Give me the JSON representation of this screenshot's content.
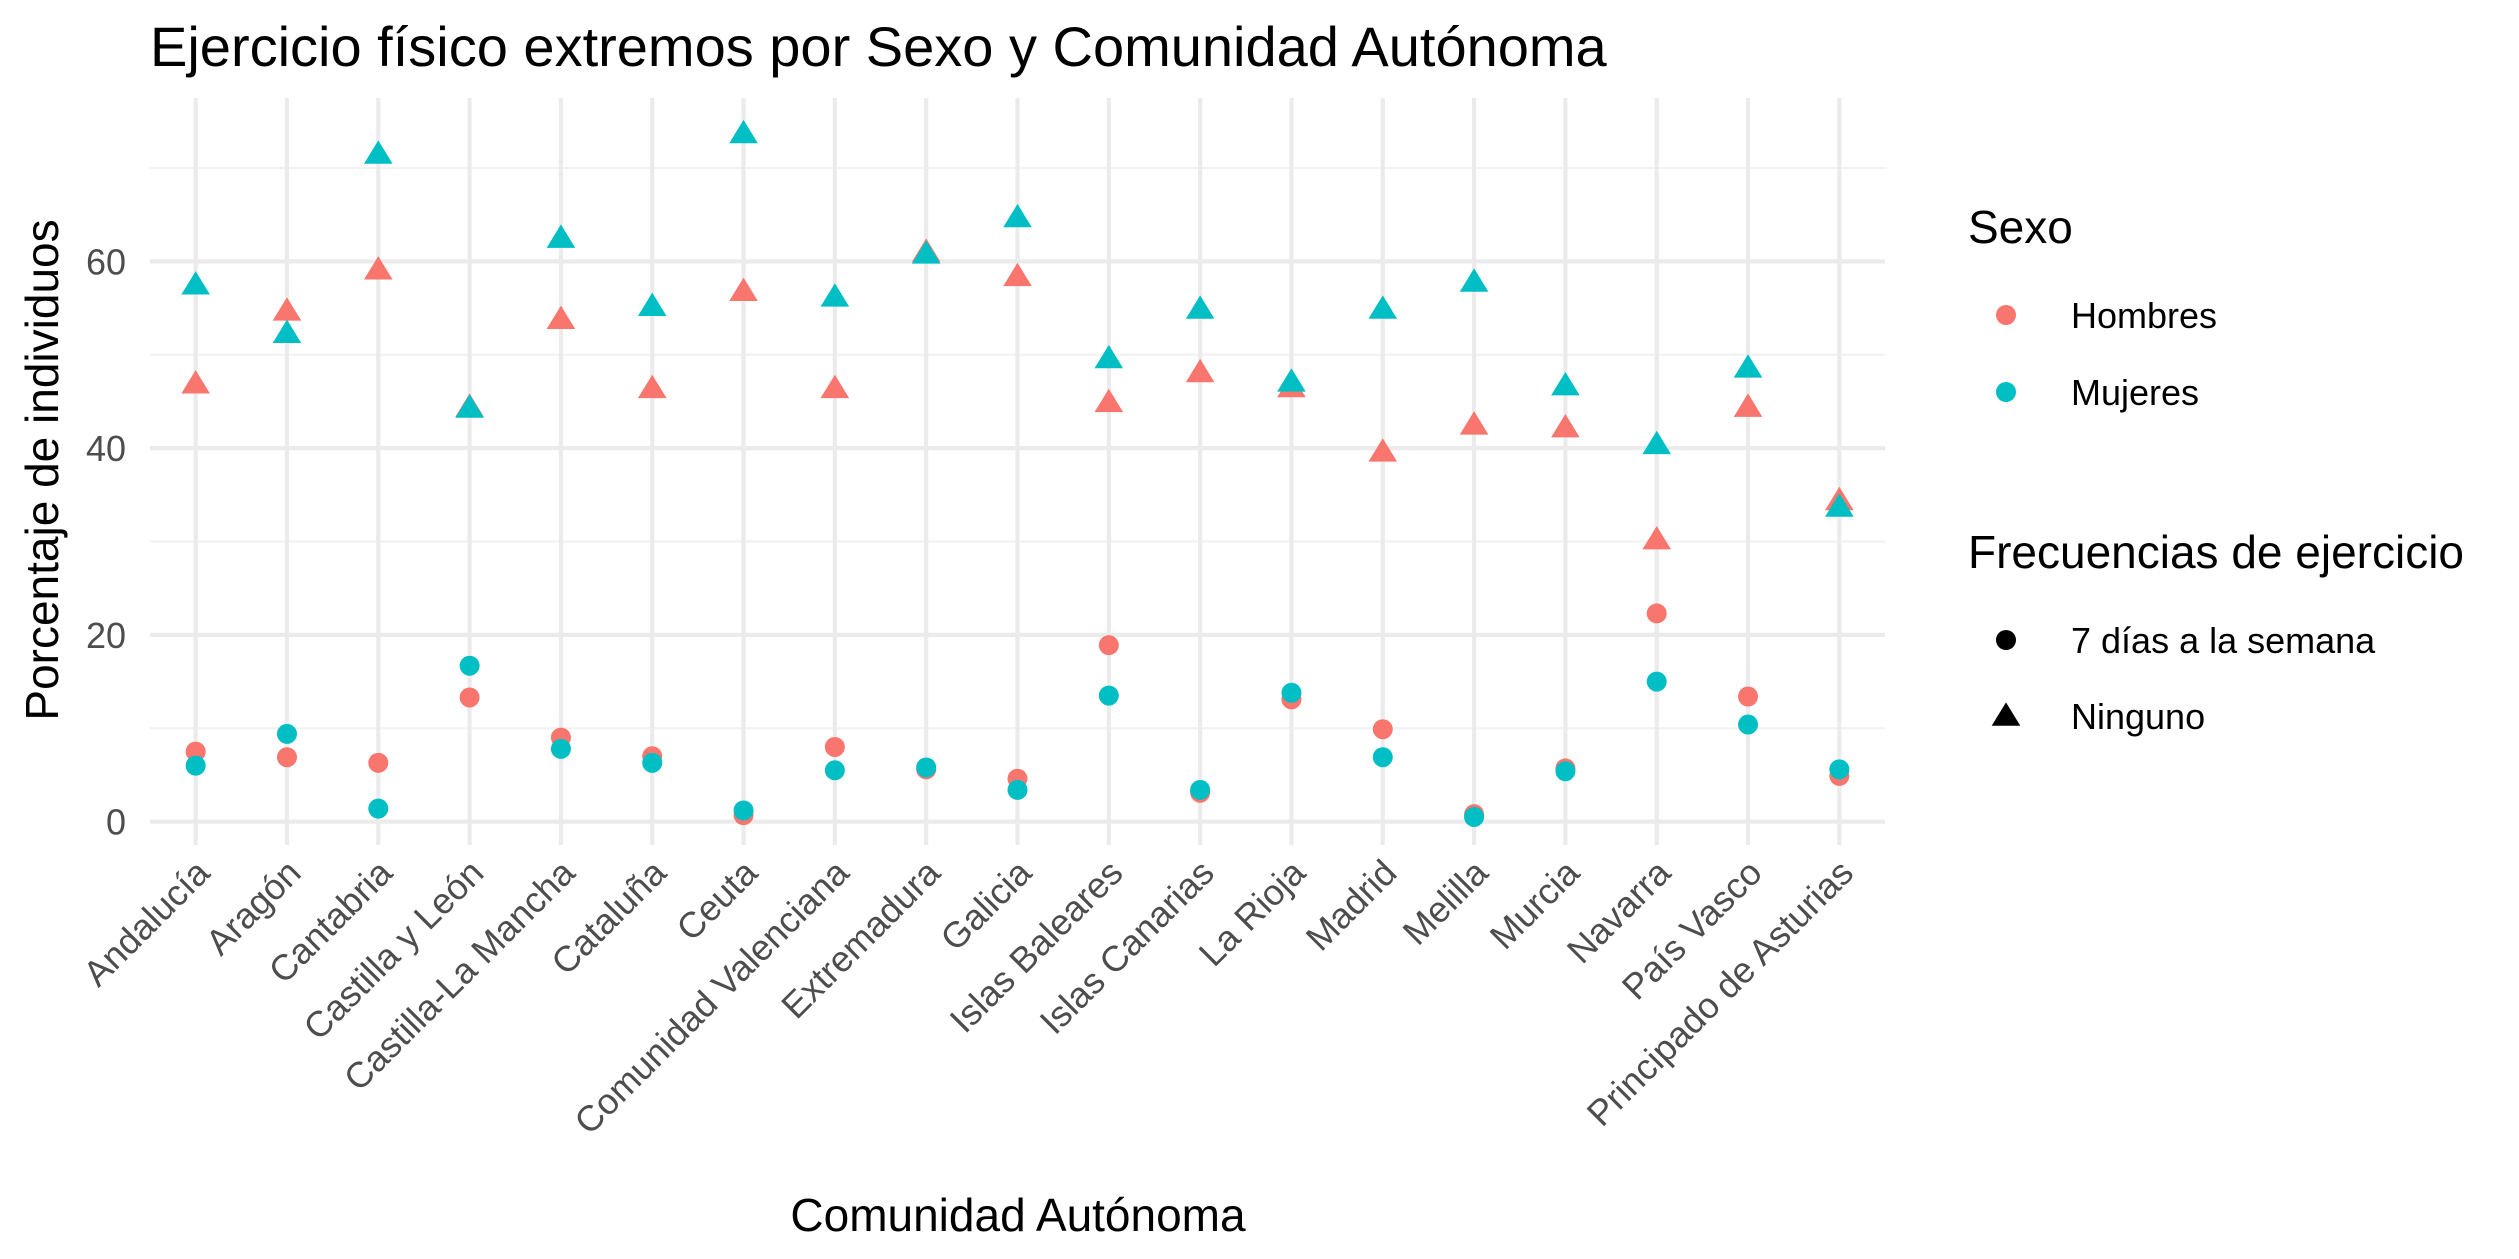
{
  "chart_data": {
    "type": "scatter",
    "title": "Ejercicio físico extremos por Sexo y Comunidad Autónoma",
    "xlabel": "Comunidad Autónoma",
    "ylabel": "Porcentaje de individuos",
    "ylim": [
      -2.5,
      77.5
    ],
    "yticks": [
      0,
      20,
      40,
      60
    ],
    "ytick_labels": [
      "0",
      "20",
      "40",
      "60"
    ],
    "grid": true,
    "legend_position": "right",
    "categories": [
      "Andalucía",
      "Aragón",
      "Cantabria",
      "Castilla y León",
      "Castilla-La Mancha",
      "Cataluña",
      "Ceuta",
      "Comunidad Valenciana",
      "Extremadura",
      "Galicia",
      "Islas Baleares",
      "Islas Canarias",
      "La Rioja",
      "Madrid",
      "Melilla",
      "Murcia",
      "Navarra",
      "País Vasco",
      "Principado de Asturias"
    ],
    "legends": [
      {
        "title": "Sexo",
        "entries": [
          {
            "label": "Hombres",
            "color": "#F8766D",
            "shape": "circle"
          },
          {
            "label": "Mujeres",
            "color": "#00BFC4",
            "shape": "circle"
          }
        ]
      },
      {
        "title": "Frecuencias de ejercicio",
        "entries": [
          {
            "label": "7 días a la semana",
            "color": "#000000",
            "shape": "circle"
          },
          {
            "label": "Ninguno",
            "color": "#000000",
            "shape": "triangle"
          }
        ]
      }
    ],
    "series": [
      {
        "sexo": "Hombres",
        "frecuencia": "Ninguno",
        "color": "#F8766D",
        "shape": "triangle",
        "values": [
          46.9,
          54.7,
          59.1,
          44.4,
          53.8,
          46.4,
          56.8,
          46.4,
          61.0,
          58.4,
          44.9,
          48.1,
          46.5,
          39.6,
          42.5,
          42.2,
          30.2,
          44.4,
          34.4
        ]
      },
      {
        "sexo": "Mujeres",
        "frecuencia": "Ninguno",
        "color": "#00BFC4",
        "shape": "triangle",
        "values": [
          57.5,
          52.3,
          71.5,
          44.3,
          62.5,
          55.2,
          73.7,
          56.2,
          60.8,
          64.7,
          49.6,
          54.9,
          47.1,
          54.9,
          57.8,
          46.7,
          40.4,
          48.6,
          33.7
        ]
      },
      {
        "sexo": "Hombres",
        "frecuencia": "7 días a la semana",
        "color": "#F8766D",
        "shape": "circle",
        "values": [
          7.5,
          6.9,
          6.3,
          13.3,
          9.0,
          7.0,
          0.7,
          8.0,
          5.6,
          4.6,
          18.9,
          3.1,
          13.1,
          9.9,
          0.8,
          5.7,
          22.3,
          13.4,
          4.9
        ]
      },
      {
        "sexo": "Mujeres",
        "frecuencia": "7 días a la semana",
        "color": "#00BFC4",
        "shape": "circle",
        "values": [
          6.0,
          9.4,
          1.4,
          16.7,
          7.8,
          6.3,
          1.2,
          5.5,
          5.8,
          3.4,
          13.5,
          3.4,
          13.8,
          6.9,
          0.5,
          5.4,
          15.0,
          10.4,
          5.6
        ]
      }
    ]
  }
}
